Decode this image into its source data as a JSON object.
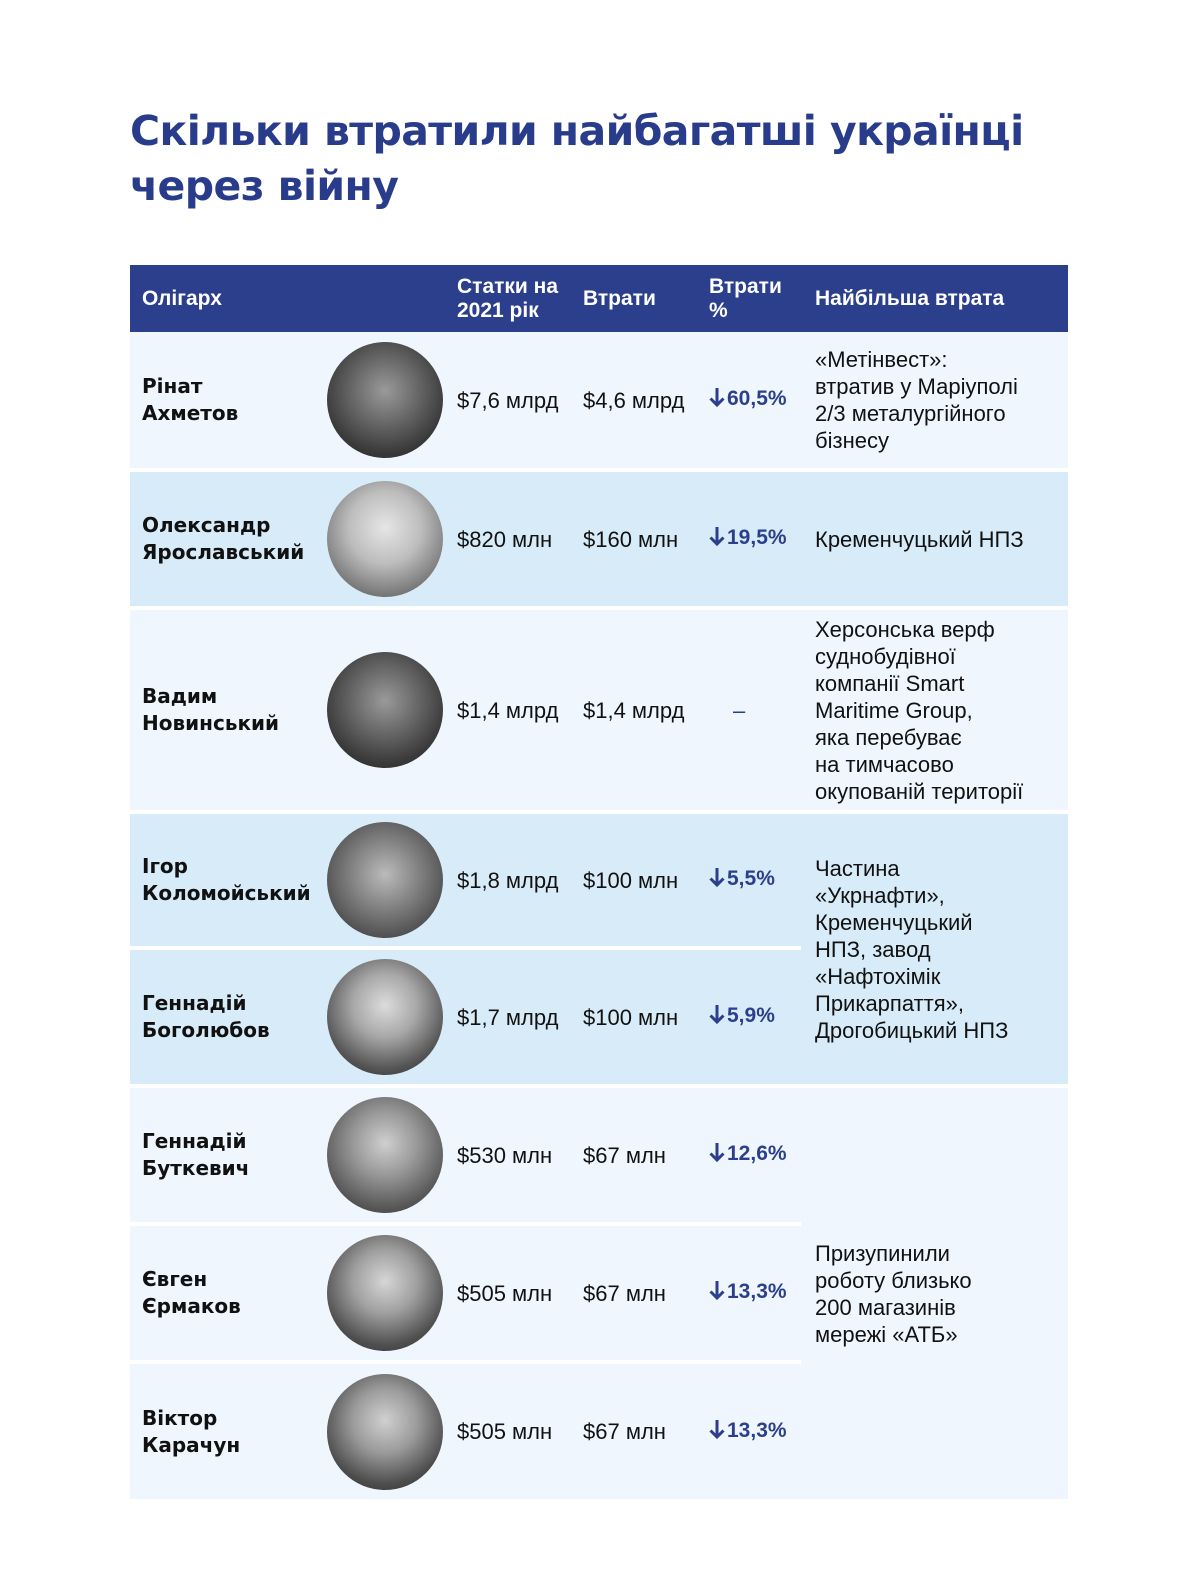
{
  "title": {
    "line1": "Скільки втратили найбагатші українці",
    "line2": "через війну"
  },
  "table": {
    "headers": {
      "oligarch": "Олігарх",
      "wealth_line1": "Статки на",
      "wealth_line2": "2021 рік",
      "losses": "Втрати",
      "losses_pct_line1": "Втрати",
      "losses_pct_line2": "%",
      "biggest_loss": "Найбільша втрата"
    },
    "rows": [
      {
        "name1": "Рінат",
        "name2": "Ахметов",
        "wealth": "$7,6 млрд",
        "loss": "$4,6 млрд",
        "pct": "60,5%",
        "photo": "portrait-photo"
      },
      {
        "name1": "Олександр",
        "name2": "Ярославський",
        "wealth": "$820 млн",
        "loss": "$160 млн",
        "pct": "19,5%",
        "photo": "portrait-photo"
      },
      {
        "name1": "Вадим",
        "name2": "Новинський",
        "wealth": "$1,4 млрд",
        "loss": "$1,4 млрд",
        "pct": "–",
        "photo": "portrait-photo"
      },
      {
        "name1": "Ігор",
        "name2": "Коломойський",
        "wealth": "$1,8 млрд",
        "loss": "$100 млн",
        "pct": "5,5%",
        "photo": "portrait-photo"
      },
      {
        "name1": "Геннадій",
        "name2": "Боголюбов",
        "wealth": "$1,7 млрд",
        "loss": "$100 млн",
        "pct": "5,9%",
        "photo": "portrait-photo"
      },
      {
        "name1": "Геннадій",
        "name2": "Буткевич",
        "wealth": "$530 млн",
        "loss": "$67 млн",
        "pct": "12,6%",
        "photo": "portrait-photo"
      },
      {
        "name1": "Євген",
        "name2": "Єрмаков",
        "wealth": "$505 млн",
        "loss": "$67 млн",
        "pct": "13,3%",
        "photo": "portrait-photo"
      },
      {
        "name1": "Віктор",
        "name2": "Карачун",
        "wealth": "$505 млн",
        "loss": "$67 млн",
        "pct": "13,3%",
        "photo": "portrait-photo"
      }
    ],
    "biggest_losses": {
      "akhmetov": [
        "«Метінвест»:",
        "втратив у Маріуполі",
        "2/3 металургійного",
        "бізнесу"
      ],
      "yaroslavsky": [
        "Кременчуцький НПЗ"
      ],
      "novinsky": [
        "Херсонська верф",
        "суднобудівної",
        "компанії Smart",
        "Maritime Group,",
        "яка перебуває",
        "на тимчасово",
        "окупованій території"
      ],
      "kolomoisky_boholiubov": [
        "Частина",
        "«Укрнафти»,",
        "Кременчуцький",
        "НПЗ, завод",
        "«Нафтохімік",
        "Прикарпаття»,",
        "Дрогобицький НПЗ"
      ],
      "atb_owners": [
        "Призупинили",
        "роботу близько",
        "200 магазинів",
        "мережі «АТБ»"
      ]
    }
  },
  "colors": {
    "title": "#283c8b",
    "header_bg": "#2c3f8c",
    "row_light": "#eff6fd",
    "row_dark": "#d8ebf8",
    "accent": "#2c3f8c"
  },
  "icons": {
    "down_arrow": "arrow-down-icon"
  }
}
